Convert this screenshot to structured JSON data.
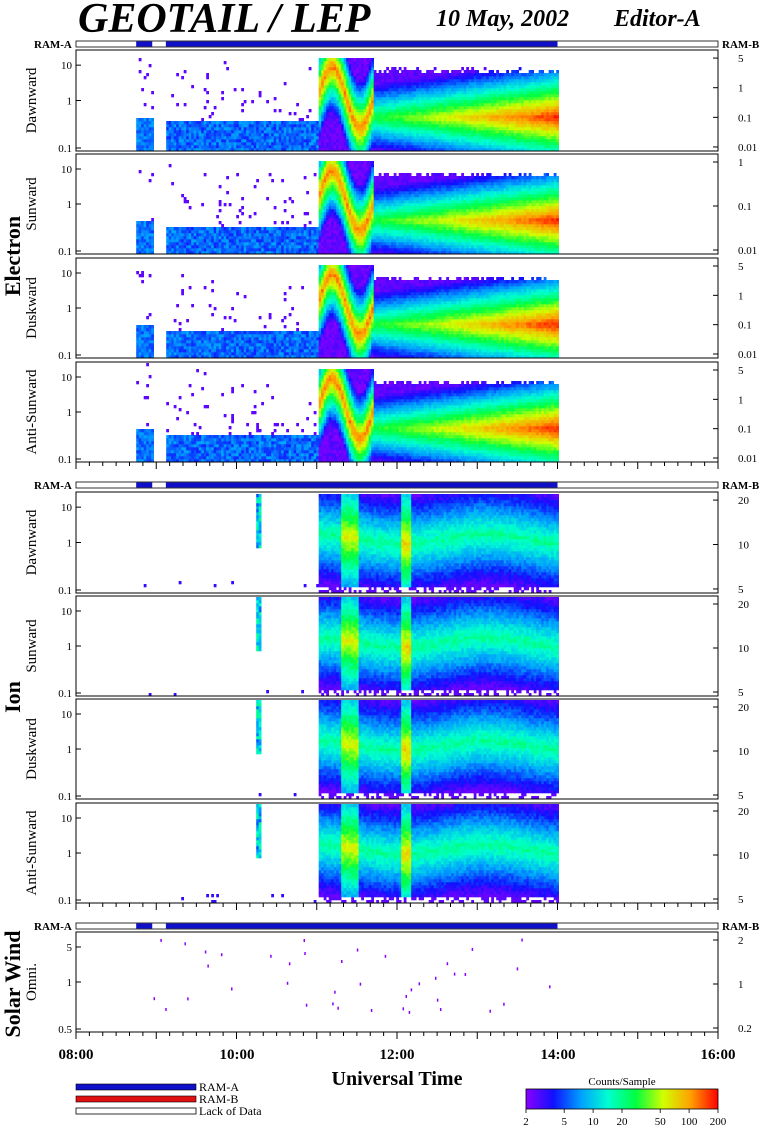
{
  "header": {
    "title": "GEOTAIL / LEP",
    "date": "10 May, 2002",
    "editor": "Editor-A"
  },
  "colors": {
    "ram_a": "#1010c8",
    "ram_b": "#e01010",
    "frame": "#000000"
  },
  "ram_labels": {
    "a": "RAM-A",
    "b": "RAM-B"
  },
  "groups": [
    {
      "label": "Electron"
    },
    {
      "label": "Ion"
    },
    {
      "label": "Solar Wind"
    }
  ],
  "x_axis": {
    "label": "Universal Time",
    "ticks": [
      "08:00",
      "10:00",
      "12:00",
      "14:00",
      "16:00"
    ]
  },
  "legend": {
    "ram_a": "RAM-A",
    "ram_b": "RAM-B",
    "lack": "Lack of Data",
    "colorbar_title": "Counts/Sample",
    "colorbar_ticks": [
      "2",
      "5",
      "10",
      "20",
      "50",
      "100",
      "200"
    ],
    "colorbar_stops": [
      "#8a00ff",
      "#1010ff",
      "#00a0ff",
      "#00ffd0",
      "#00ff40",
      "#d0ff00",
      "#ffa000",
      "#ff0000"
    ]
  },
  "chart_data": {
    "type": "heatmap",
    "title": "GEOTAIL / LEP",
    "xlabel": "Universal Time",
    "x_range_hours": [
      8,
      16
    ],
    "x_ticks": [
      "08:00",
      "10:00",
      "12:00",
      "14:00",
      "16:00"
    ],
    "data_coverage_hours": [
      8.75,
      14.0
    ],
    "data_gap_hours": [
      [
        8.95,
        9.12
      ]
    ],
    "panels": [
      {
        "group": "Electron",
        "ylabel": "Dawnward",
        "y_left_ticks": [
          "10",
          "1",
          "0.1"
        ],
        "y_right_ticks": [
          "5",
          "1",
          "0.1",
          "0.01"
        ]
      },
      {
        "group": "Electron",
        "ylabel": "Sunward",
        "y_left_ticks": [
          "10",
          "1",
          "0.1"
        ],
        "y_right_ticks": [
          "1",
          "0.1",
          "0.01"
        ]
      },
      {
        "group": "Electron",
        "ylabel": "Duskward",
        "y_left_ticks": [
          "10",
          "1",
          "0.1"
        ],
        "y_right_ticks": [
          "5",
          "1",
          "0.1",
          "0.01"
        ]
      },
      {
        "group": "Electron",
        "ylabel": "Anti-Sunward",
        "y_left_ticks": [
          "10",
          "1",
          "0.1"
        ],
        "y_right_ticks": [
          "5",
          "1",
          "0.1",
          "0.01"
        ]
      },
      {
        "group": "Ion",
        "ylabel": "Dawnward",
        "y_left_ticks": [
          "10",
          "1",
          "0.1"
        ],
        "y_right_ticks": [
          "20",
          "10",
          "5"
        ]
      },
      {
        "group": "Ion",
        "ylabel": "Sunward",
        "y_left_ticks": [
          "10",
          "1",
          "0.1"
        ],
        "y_right_ticks": [
          "20",
          "10",
          "5"
        ]
      },
      {
        "group": "Ion",
        "ylabel": "Duskward",
        "y_left_ticks": [
          "10",
          "1",
          "0.1"
        ],
        "y_right_ticks": [
          "20",
          "10",
          "5"
        ]
      },
      {
        "group": "Ion",
        "ylabel": "Anti-Sunward",
        "y_left_ticks": [
          "10",
          "1",
          "0.1"
        ],
        "y_right_ticks": [
          "20",
          "10",
          "5"
        ]
      },
      {
        "group": "Solar Wind",
        "ylabel": "Omni.",
        "y_left_ticks": [
          "5",
          "1",
          "0.5"
        ],
        "y_right_ticks": [
          "2",
          "1",
          "0.2"
        ]
      }
    ],
    "colorbar": {
      "label": "Counts/Sample",
      "range": [
        2,
        200
      ],
      "scale": "log"
    }
  }
}
